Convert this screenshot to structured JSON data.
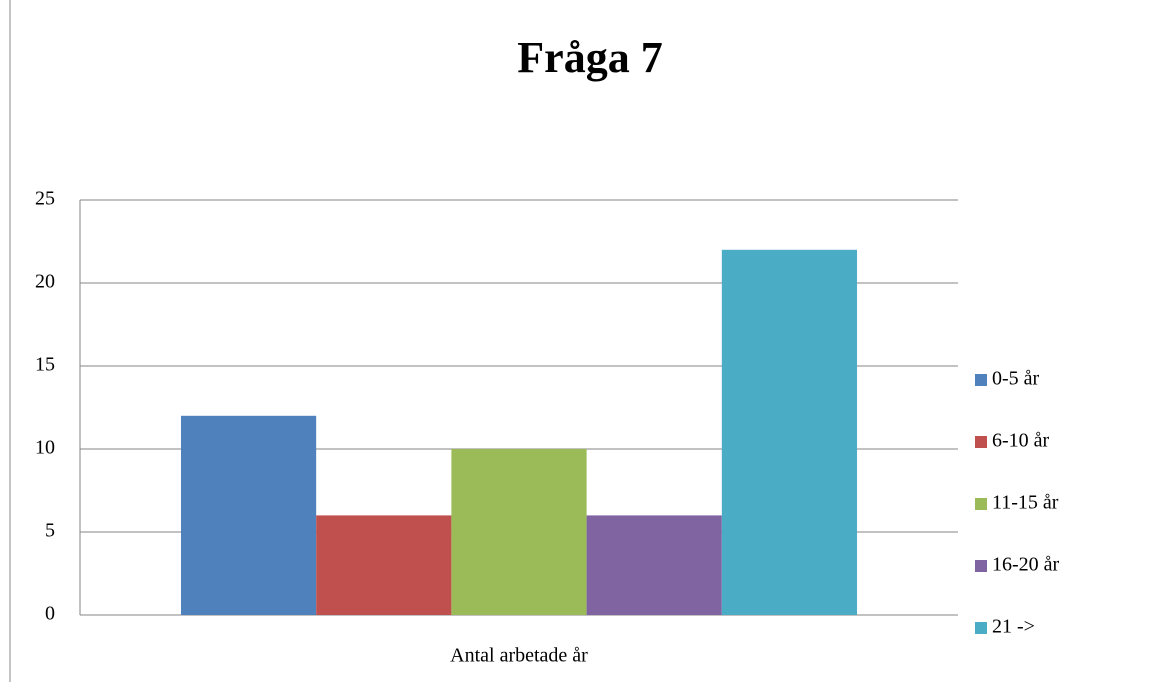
{
  "chart_data": {
    "type": "bar",
    "title": "Fråga 7",
    "categories": [
      "Antal arbetade år"
    ],
    "series": [
      {
        "name": "0-5 år",
        "color": "#4f81bd",
        "values": [
          12
        ]
      },
      {
        "name": "6-10 år",
        "color": "#c0504d",
        "values": [
          6
        ]
      },
      {
        "name": "11-15 år",
        "color": "#9bbb59",
        "values": [
          10
        ]
      },
      {
        "name": "16-20 år",
        "color": "#8064a2",
        "values": [
          6
        ]
      },
      {
        "name": "21 ->",
        "color": "#4bacc6",
        "values": [
          22
        ]
      }
    ],
    "ylim": [
      0,
      25
    ],
    "yticks": [
      0,
      5,
      10,
      15,
      20,
      25
    ],
    "grid": true,
    "legend": "right"
  }
}
